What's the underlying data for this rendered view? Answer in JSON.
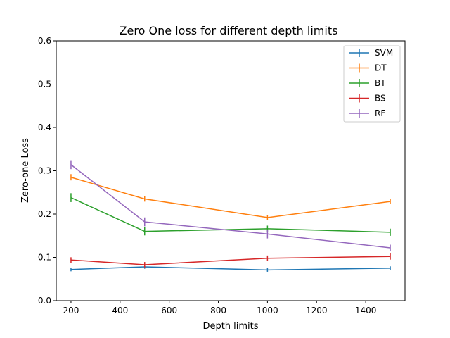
{
  "chart_data": {
    "type": "line",
    "title": "Zero One loss for different depth limits",
    "xlabel": "Depth limits",
    "ylabel": "Zero-one Loss",
    "xlim": [
      140,
      1560
    ],
    "ylim": [
      0.0,
      0.6
    ],
    "xticks": [
      200,
      400,
      600,
      800,
      1000,
      1200,
      1400
    ],
    "yticks": [
      0.0,
      0.1,
      0.2,
      0.3,
      0.4,
      0.5,
      0.6
    ],
    "xtick_labels": [
      "200",
      "400",
      "600",
      "800",
      "1000",
      "1200",
      "1400"
    ],
    "ytick_labels": [
      "0.0",
      "0.1",
      "0.2",
      "0.3",
      "0.4",
      "0.5",
      "0.6"
    ],
    "grid": false,
    "legend_position": "top-right",
    "x": [
      200,
      500,
      1000,
      1500
    ],
    "series": [
      {
        "name": "SVM",
        "color": "#1f77b4",
        "values": [
          0.072,
          0.078,
          0.071,
          0.075
        ],
        "errors": [
          0.001,
          0.001,
          0.001,
          0.001
        ]
      },
      {
        "name": "DT",
        "color": "#ff7f0e",
        "values": [
          0.285,
          0.235,
          0.192,
          0.229
        ],
        "errors": [
          0.004,
          0.003,
          0.003,
          0.002
        ]
      },
      {
        "name": "BT",
        "color": "#2ca02c",
        "values": [
          0.238,
          0.16,
          0.166,
          0.158
        ],
        "errors": [
          0.007,
          0.006,
          0.004,
          0.005
        ]
      },
      {
        "name": "BS",
        "color": "#d62728",
        "values": [
          0.094,
          0.083,
          0.098,
          0.102
        ],
        "errors": [
          0.003,
          0.003,
          0.003,
          0.004
        ]
      },
      {
        "name": "RF",
        "color": "#9467bd",
        "values": [
          0.314,
          0.182,
          0.154,
          0.122
        ],
        "errors": [
          0.007,
          0.007,
          0.007,
          0.004
        ]
      }
    ]
  }
}
